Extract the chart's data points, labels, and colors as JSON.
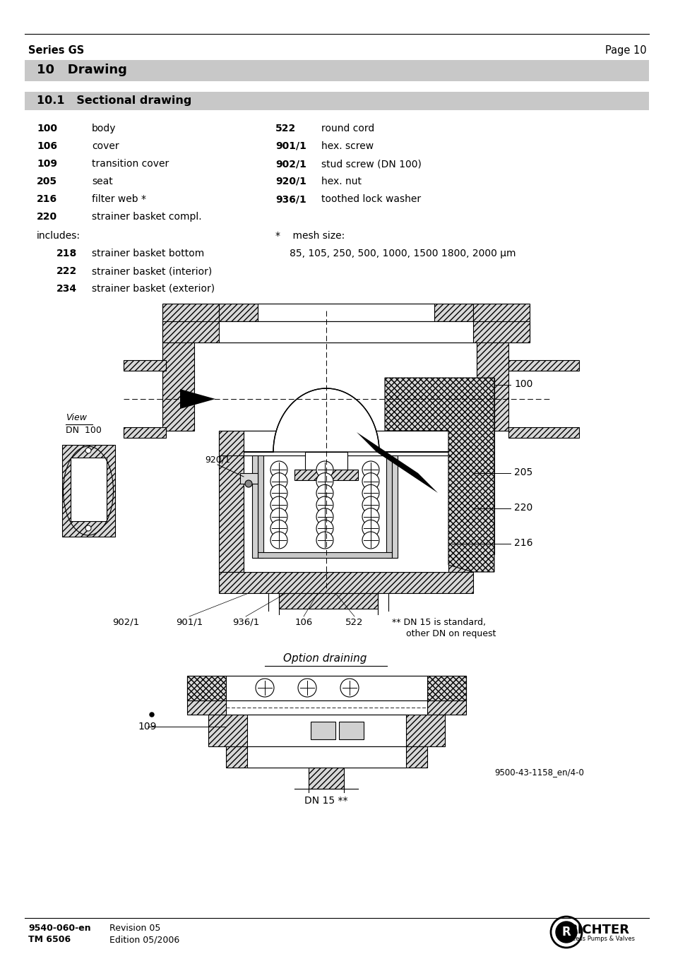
{
  "page_title_left": "Series GS",
  "page_title_right": "Page 10",
  "section_heading": "10   Drawing",
  "subsection_heading": "10.1   Sectional drawing",
  "parts_left": [
    [
      "100",
      "body"
    ],
    [
      "106",
      "cover"
    ],
    [
      "109",
      "transition cover"
    ],
    [
      "205",
      "seat"
    ],
    [
      "216",
      "filter web *"
    ],
    [
      "220",
      "strainer basket compl."
    ]
  ],
  "includes_label": "includes:",
  "parts_indented": [
    [
      "218",
      "strainer basket bottom"
    ],
    [
      "222",
      "strainer basket (interior)"
    ],
    [
      "234",
      "strainer basket (exterior)"
    ]
  ],
  "parts_right": [
    [
      "522",
      "round cord"
    ],
    [
      "901/1",
      "hex. screw"
    ],
    [
      "902/1",
      "stud screw (DN 100)"
    ],
    [
      "920/1",
      "hex. nut"
    ],
    [
      "936/1",
      "toothed lock washer"
    ]
  ],
  "note_star": "*    mesh size:",
  "note_mesh": "85, 105, 250, 500, 1000, 1500 1800, 2000 μm",
  "footer_left1": "9540-060-en",
  "footer_left2": "TM 6506",
  "footer_right1": "Revision 05",
  "footer_right2": "Edition 05/2006",
  "bg_header": "#c8c8c8",
  "bg_section": "#d0d0d0",
  "bg_white": "#ffffff",
  "text_black": "#000000",
  "drawing_note1": "** DN 15 is standard,",
  "drawing_note2": "     other DN on request",
  "option_draining": "Option draining",
  "dn15_label": "DN 15 **",
  "image_ref": "9500-43-1158_en/4-0",
  "hatch_color": "#d0d0d0",
  "hatch_cross_color": "#a0a0a0"
}
